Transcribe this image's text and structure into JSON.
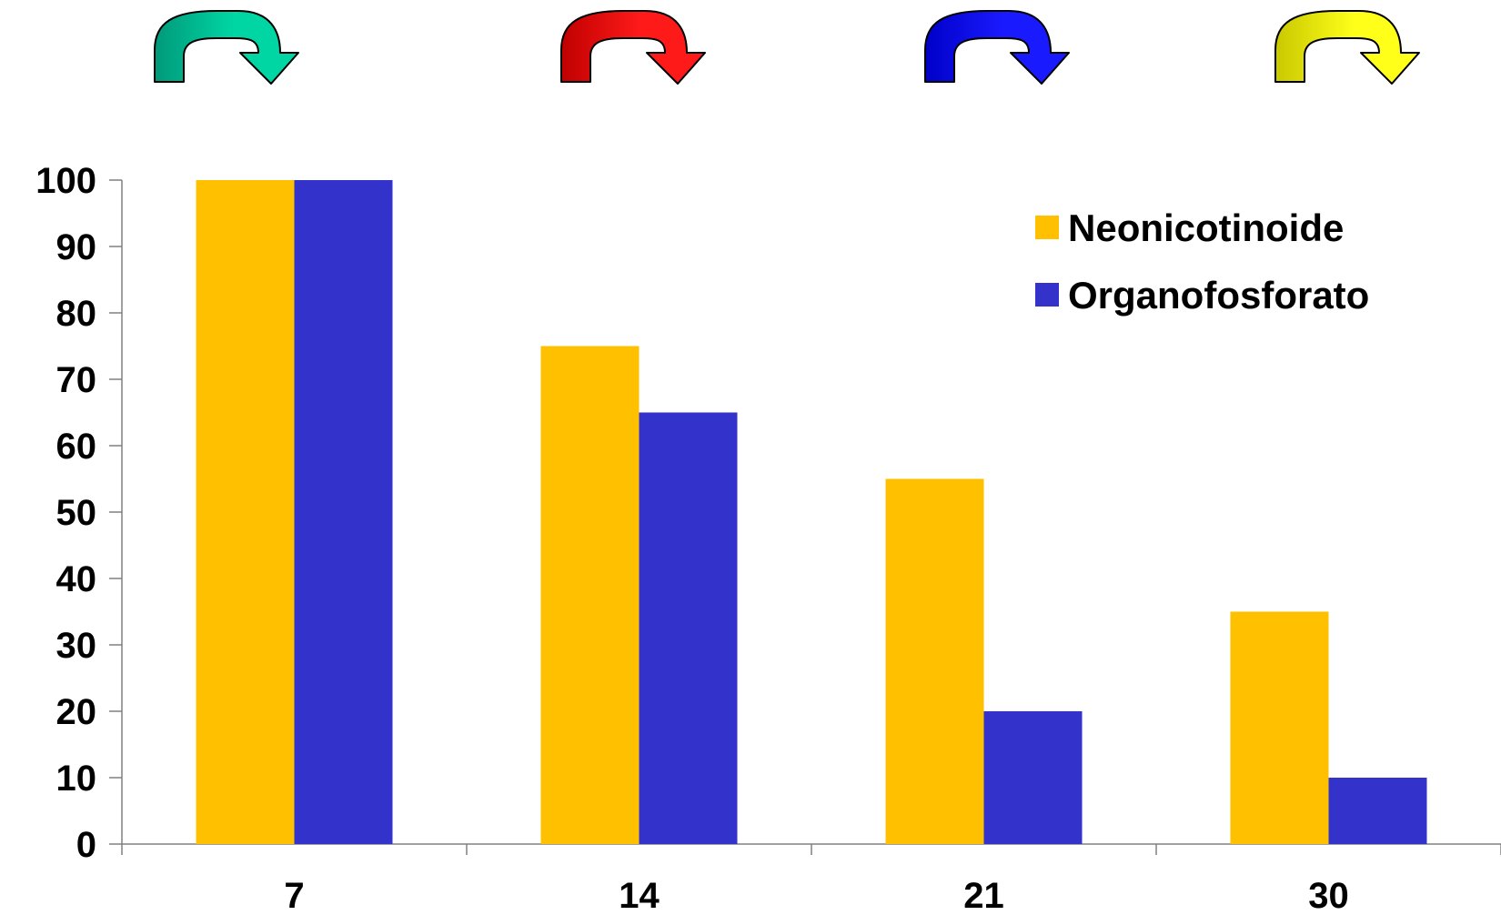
{
  "chart_data": {
    "type": "bar",
    "title": "",
    "xlabel": "",
    "ylabel": "",
    "categories": [
      "7",
      "14",
      "21",
      "30"
    ],
    "series": [
      {
        "name": "Neonicotinoide",
        "color": "#FFC000",
        "values": [
          100,
          75,
          55,
          35
        ]
      },
      {
        "name": "Organofosforato",
        "color": "#3333CC",
        "values": [
          100,
          65,
          20,
          10
        ]
      }
    ],
    "ylim": [
      0,
      100
    ],
    "yticks": [
      "0",
      "10",
      "20",
      "30",
      "40",
      "50",
      "60",
      "70",
      "80",
      "90",
      "100"
    ],
    "grid": false,
    "legend_position": "top-right"
  },
  "decorations": {
    "arrows": [
      {
        "icon": "curved-arrow-icon",
        "color_dark": "#00997A",
        "color_light": "#00D6A3"
      },
      {
        "icon": "curved-arrow-icon",
        "color_dark": "#C00000",
        "color_light": "#FF1A1A"
      },
      {
        "icon": "curved-arrow-icon",
        "color_dark": "#0000C8",
        "color_light": "#1A1AFF"
      },
      {
        "icon": "curved-arrow-icon",
        "color_dark": "#C8C800",
        "color_light": "#FFFF1A"
      }
    ]
  }
}
